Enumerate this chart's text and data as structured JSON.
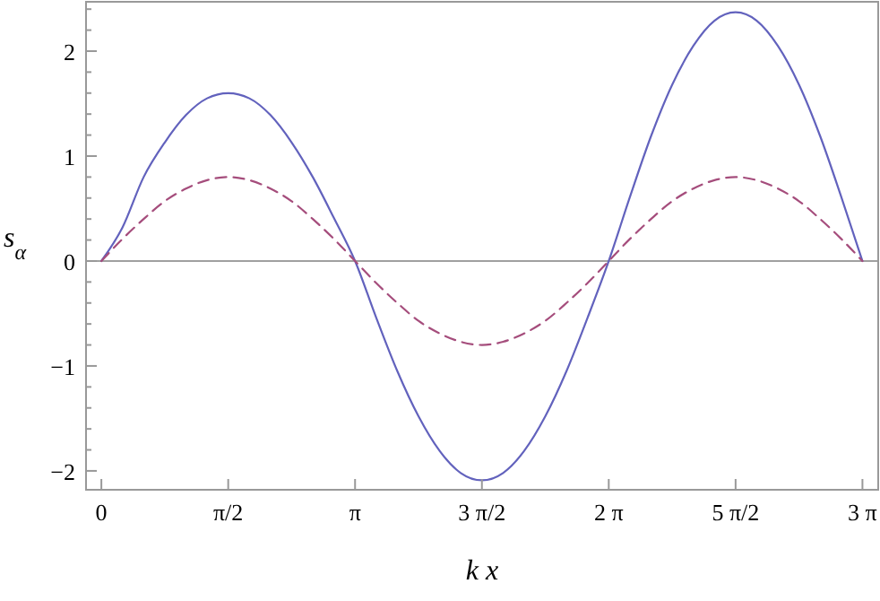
{
  "chart_data": {
    "type": "line",
    "xlabel": "k x",
    "ylabel": "s$_{α}$",
    "x": [
      0,
      0.2618,
      0.5236,
      0.7854,
      1.0472,
      1.309,
      1.5708,
      1.8326,
      2.0944,
      2.3562,
      2.618,
      2.8798,
      3.1416,
      3.4034,
      3.6652,
      3.927,
      4.1888,
      4.4506,
      4.7124,
      4.9742,
      5.236,
      5.4978,
      5.7596,
      6.0214,
      6.2832,
      6.545,
      6.8068,
      7.0686,
      7.3304,
      7.5922,
      7.854,
      8.1158,
      8.3776,
      8.6394,
      8.9012,
      9.163,
      9.4248
    ],
    "series": [
      {
        "color": "#6262bd",
        "line_style": "solid",
        "values": [
          0,
          0.32,
          0.8,
          1.13,
          1.39,
          1.55,
          1.6,
          1.55,
          1.39,
          1.13,
          0.8,
          0.41,
          0,
          -0.54,
          -1.05,
          -1.48,
          -1.81,
          -2.02,
          -2.09,
          -2.02,
          -1.81,
          -1.48,
          -1.05,
          -0.54,
          0,
          0.61,
          1.19,
          1.68,
          2.05,
          2.29,
          2.37,
          2.29,
          2.05,
          1.68,
          1.19,
          0.61,
          0
        ]
      },
      {
        "color": "#a54d7c",
        "line_style": "dashed",
        "values": [
          0,
          0.21,
          0.4,
          0.57,
          0.69,
          0.77,
          0.8,
          0.77,
          0.69,
          0.57,
          0.4,
          0.21,
          0,
          -0.21,
          -0.4,
          -0.57,
          -0.69,
          -0.77,
          -0.8,
          -0.77,
          -0.69,
          -0.57,
          -0.4,
          -0.21,
          0,
          0.21,
          0.4,
          0.57,
          0.69,
          0.77,
          0.8,
          0.77,
          0.69,
          0.57,
          0.4,
          0.21,
          0
        ]
      }
    ],
    "xlim": [
      -0.19,
      9.62
    ],
    "ylim": [
      -2.18,
      2.47
    ],
    "xticks": [
      0,
      {
        "value": 1.5708,
        "label": "π/2"
      },
      {
        "value": 3.1416,
        "label": "π"
      },
      {
        "value": 4.7124,
        "label": "3 π/2"
      },
      {
        "value": 6.2832,
        "label": "2 π"
      },
      {
        "value": 7.854,
        "label": "5 π/2"
      },
      {
        "value": 9.4248,
        "label": "3 π"
      }
    ],
    "yticks": [
      -2,
      {
        "value": -1.8,
        "label": null
      },
      {
        "value": -1.6,
        "label": null
      },
      {
        "value": -1.4,
        "label": null
      },
      {
        "value": -1.2,
        "label": null
      },
      -1,
      {
        "value": -0.8,
        "label": null
      },
      {
        "value": -0.6,
        "label": null
      },
      {
        "value": -0.4,
        "label": null
      },
      {
        "value": -0.2,
        "label": null
      },
      0,
      {
        "value": 0.2,
        "label": null
      },
      {
        "value": 0.4,
        "label": null
      },
      {
        "value": 0.6,
        "label": null
      },
      {
        "value": 0.8,
        "label": null
      },
      1,
      {
        "value": 1.2,
        "label": null
      },
      {
        "value": 1.4,
        "label": null
      },
      {
        "value": 1.6,
        "label": null
      },
      {
        "value": 1.8,
        "label": null
      },
      2,
      {
        "value": 2.2,
        "label": null
      },
      {
        "value": 2.4,
        "label": null
      }
    ],
    "ref_lines": [
      {
        "axis": "y",
        "value": 0,
        "color": "#808080"
      }
    ],
    "grid": false
  }
}
